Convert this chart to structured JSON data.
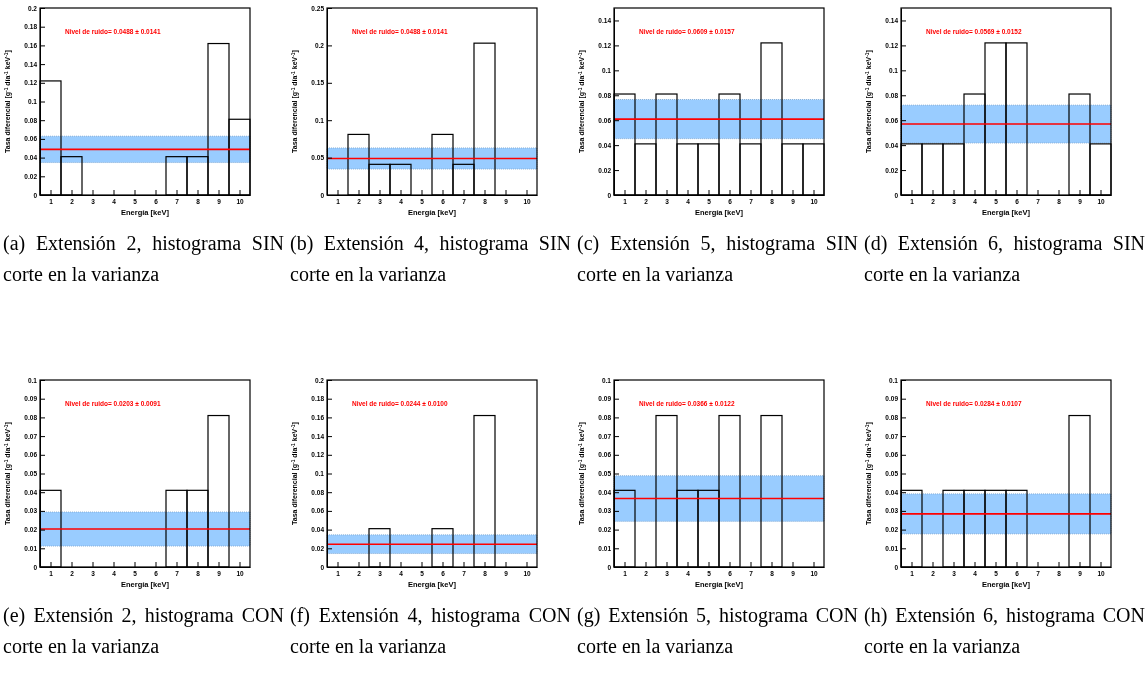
{
  "chart_data": [
    {
      "type": "histogram",
      "title": "(a) Extensión 2, histograma SIN corte en la varianza",
      "xlabel": "Energía [keV]",
      "ylabel": "Tasa diferencial [g$^{-1}$ día$^{-1}$ keV$^{-1}$]",
      "color": "#000000",
      "bins": [
        0.5,
        1.5,
        2.5,
        3.5,
        4.5,
        5.5,
        6.5,
        7.5,
        8.5,
        9.5,
        10.5
      ],
      "values": [
        0.122,
        0.041,
        0,
        0,
        0,
        0,
        0.041,
        0.041,
        0.162,
        0.081
      ],
      "xlim": [
        0.5,
        10.5
      ],
      "xticks": [
        1,
        2,
        3,
        4,
        5,
        6,
        7,
        8,
        9,
        10
      ],
      "ylim": [
        0,
        0.2
      ],
      "yticks": [
        0,
        0.02,
        0.04,
        0.06,
        0.08,
        0.1,
        0.12,
        0.14,
        0.16,
        0.18,
        0.2
      ],
      "ref_lines": [
        {
          "axis": "y",
          "value": 0.0488,
          "color": "#ff0000"
        }
      ],
      "bands": [
        {
          "axis": "y",
          "from": 0.0347,
          "to": 0.0629,
          "color": "#99ccff"
        }
      ],
      "annotations": [
        "Nivel de ruido= 0.0488 ±  0.0141"
      ]
    },
    {
      "type": "histogram",
      "title": "(b) Extensión 4, histograma SIN corte en la varianza",
      "xlabel": "Energía [keV]",
      "ylabel": "Tasa diferencial [g$^{-1}$ día$^{-1}$ keV$^{-1}$]",
      "color": "#000000",
      "bins": [
        0.5,
        1.5,
        2.5,
        3.5,
        4.5,
        5.5,
        6.5,
        7.5,
        8.5,
        9.5,
        10.5
      ],
      "values": [
        0,
        0.081,
        0.041,
        0.041,
        0,
        0.081,
        0.041,
        0.203,
        0,
        0
      ],
      "xlim": [
        0.5,
        10.5
      ],
      "xticks": [
        1,
        2,
        3,
        4,
        5,
        6,
        7,
        8,
        9,
        10
      ],
      "ylim": [
        0,
        0.25
      ],
      "yticks": [
        0,
        0.05,
        0.1,
        0.15,
        0.2,
        0.25
      ],
      "ref_lines": [
        {
          "axis": "y",
          "value": 0.0488,
          "color": "#ff0000"
        }
      ],
      "bands": [
        {
          "axis": "y",
          "from": 0.0347,
          "to": 0.0629,
          "color": "#99ccff"
        }
      ],
      "annotations": [
        "Nivel de ruido= 0.0488 ±  0.0141"
      ]
    },
    {
      "type": "histogram",
      "title": "(c) Extensión 5, histograma SIN corte en la varianza",
      "xlabel": "Energía [keV]",
      "ylabel": "Tasa diferencial [g$^{-1}$ día$^{-1}$ keV$^{-1}$]",
      "color": "#000000",
      "bins": [
        0.5,
        1.5,
        2.5,
        3.5,
        4.5,
        5.5,
        6.5,
        7.5,
        8.5,
        9.5,
        10.5
      ],
      "values": [
        0.081,
        0.041,
        0.081,
        0.041,
        0.041,
        0.081,
        0.041,
        0.122,
        0.041,
        0.041
      ],
      "xlim": [
        0.5,
        10.5
      ],
      "xticks": [
        1,
        2,
        3,
        4,
        5,
        6,
        7,
        8,
        9,
        10
      ],
      "ylim": [
        0,
        0.15
      ],
      "yticks": [
        0,
        0.02,
        0.04,
        0.06,
        0.08,
        0.1,
        0.12,
        0.14
      ],
      "ref_lines": [
        {
          "axis": "y",
          "value": 0.0609,
          "color": "#ff0000"
        }
      ],
      "bands": [
        {
          "axis": "y",
          "from": 0.0452,
          "to": 0.0766,
          "color": "#99ccff"
        }
      ],
      "annotations": [
        "Nivel de ruido= 0.0609 ±  0.0157"
      ]
    },
    {
      "type": "histogram",
      "title": "(d) Extensión 6, histograma SIN corte en la varianza",
      "xlabel": "Energía [keV]",
      "ylabel": "Tasa diferencial [g$^{-1}$ día$^{-1}$ keV$^{-1}$]",
      "color": "#000000",
      "bins": [
        0.5,
        1.5,
        2.5,
        3.5,
        4.5,
        5.5,
        6.5,
        7.5,
        8.5,
        9.5,
        10.5
      ],
      "values": [
        0.041,
        0.041,
        0.041,
        0.081,
        0.122,
        0.122,
        0,
        0,
        0.081,
        0.041
      ],
      "xlim": [
        0.5,
        10.5
      ],
      "xticks": [
        1,
        2,
        3,
        4,
        5,
        6,
        7,
        8,
        9,
        10
      ],
      "ylim": [
        0,
        0.15
      ],
      "yticks": [
        0,
        0.02,
        0.04,
        0.06,
        0.08,
        0.1,
        0.12,
        0.14
      ],
      "ref_lines": [
        {
          "axis": "y",
          "value": 0.0569,
          "color": "#ff0000"
        }
      ],
      "bands": [
        {
          "axis": "y",
          "from": 0.0417,
          "to": 0.0721,
          "color": "#99ccff"
        }
      ],
      "annotations": [
        "Nivel de ruido= 0.0569 ±  0.0152"
      ]
    },
    {
      "type": "histogram",
      "title": "(e) Extensión 2, histograma CON corte en la varianza",
      "xlabel": "Energía [keV]",
      "ylabel": "Tasa diferencial [g$^{-1}$ día$^{-1}$ keV$^{-1}$]",
      "color": "#000000",
      "bins": [
        0.5,
        1.5,
        2.5,
        3.5,
        4.5,
        5.5,
        6.5,
        7.5,
        8.5,
        9.5,
        10.5
      ],
      "values": [
        0.041,
        0,
        0,
        0,
        0,
        0,
        0.041,
        0.041,
        0.081,
        0
      ],
      "xlim": [
        0.5,
        10.5
      ],
      "xticks": [
        1,
        2,
        3,
        4,
        5,
        6,
        7,
        8,
        9,
        10
      ],
      "ylim": [
        0,
        0.1
      ],
      "yticks": [
        0,
        0.01,
        0.02,
        0.03,
        0.04,
        0.05,
        0.06,
        0.07,
        0.08,
        0.09,
        0.1
      ],
      "ref_lines": [
        {
          "axis": "y",
          "value": 0.0203,
          "color": "#ff0000"
        }
      ],
      "bands": [
        {
          "axis": "y",
          "from": 0.0112,
          "to": 0.0294,
          "color": "#99ccff"
        }
      ],
      "annotations": [
        "Nivel de ruido= 0.0203 ±  0.0091"
      ]
    },
    {
      "type": "histogram",
      "title": "(f) Extensión 4, histograma CON corte en la varianza",
      "xlabel": "Energía [keV]",
      "ylabel": "Tasa diferencial [g$^{-1}$ día$^{-1}$ keV$^{-1}$]",
      "color": "#000000",
      "bins": [
        0.5,
        1.5,
        2.5,
        3.5,
        4.5,
        5.5,
        6.5,
        7.5,
        8.5,
        9.5,
        10.5
      ],
      "values": [
        0,
        0,
        0.041,
        0,
        0,
        0.041,
        0,
        0.162,
        0,
        0
      ],
      "xlim": [
        0.5,
        10.5
      ],
      "xticks": [
        1,
        2,
        3,
        4,
        5,
        6,
        7,
        8,
        9,
        10
      ],
      "ylim": [
        0,
        0.2
      ],
      "yticks": [
        0,
        0.02,
        0.04,
        0.06,
        0.08,
        0.1,
        0.12,
        0.14,
        0.16,
        0.18,
        0.2
      ],
      "ref_lines": [
        {
          "axis": "y",
          "value": 0.0244,
          "color": "#ff0000"
        }
      ],
      "bands": [
        {
          "axis": "y",
          "from": 0.0144,
          "to": 0.0344,
          "color": "#99ccff"
        }
      ],
      "annotations": [
        "Nivel de ruido= 0.0244 ±  0.0100"
      ]
    },
    {
      "type": "histogram",
      "title": "(g) Extensión 5, histograma CON corte en la varianza",
      "xlabel": "Energía [keV]",
      "ylabel": "Tasa diferencial [g$^{-1}$ día$^{-1}$ keV$^{-1}$]",
      "color": "#000000",
      "bins": [
        0.5,
        1.5,
        2.5,
        3.5,
        4.5,
        5.5,
        6.5,
        7.5,
        8.5,
        9.5,
        10.5
      ],
      "values": [
        0.041,
        0,
        0.081,
        0.041,
        0.041,
        0.081,
        0,
        0.081,
        0,
        0
      ],
      "xlim": [
        0.5,
        10.5
      ],
      "xticks": [
        1,
        2,
        3,
        4,
        5,
        6,
        7,
        8,
        9,
        10
      ],
      "ylim": [
        0,
        0.1
      ],
      "yticks": [
        0,
        0.01,
        0.02,
        0.03,
        0.04,
        0.05,
        0.06,
        0.07,
        0.08,
        0.09,
        0.1
      ],
      "ref_lines": [
        {
          "axis": "y",
          "value": 0.0366,
          "color": "#ff0000"
        }
      ],
      "bands": [
        {
          "axis": "y",
          "from": 0.0244,
          "to": 0.0488,
          "color": "#99ccff"
        }
      ],
      "annotations": [
        "Nivel de ruido= 0.0366 ±  0.0122"
      ]
    },
    {
      "type": "histogram",
      "title": "(h) Extensión 6, histograma CON corte en la varianza",
      "xlabel": "Energía [keV]",
      "ylabel": "Tasa diferencial [g$^{-1}$ día$^{-1}$ keV$^{-1}$]",
      "color": "#000000",
      "bins": [
        0.5,
        1.5,
        2.5,
        3.5,
        4.5,
        5.5,
        6.5,
        7.5,
        8.5,
        9.5,
        10.5
      ],
      "values": [
        0.041,
        0,
        0.041,
        0.041,
        0.041,
        0.041,
        0,
        0,
        0.081,
        0
      ],
      "xlim": [
        0.5,
        10.5
      ],
      "xticks": [
        1,
        2,
        3,
        4,
        5,
        6,
        7,
        8,
        9,
        10
      ],
      "ylim": [
        0,
        0.1
      ],
      "yticks": [
        0,
        0.01,
        0.02,
        0.03,
        0.04,
        0.05,
        0.06,
        0.07,
        0.08,
        0.09,
        0.1
      ],
      "ref_lines": [
        {
          "axis": "y",
          "value": 0.0284,
          "color": "#ff0000"
        }
      ],
      "bands": [
        {
          "axis": "y",
          "from": 0.0177,
          "to": 0.0391,
          "color": "#99ccff"
        }
      ],
      "annotations": [
        "Nivel de ruido= 0.0284 ±  0.0107"
      ]
    }
  ]
}
